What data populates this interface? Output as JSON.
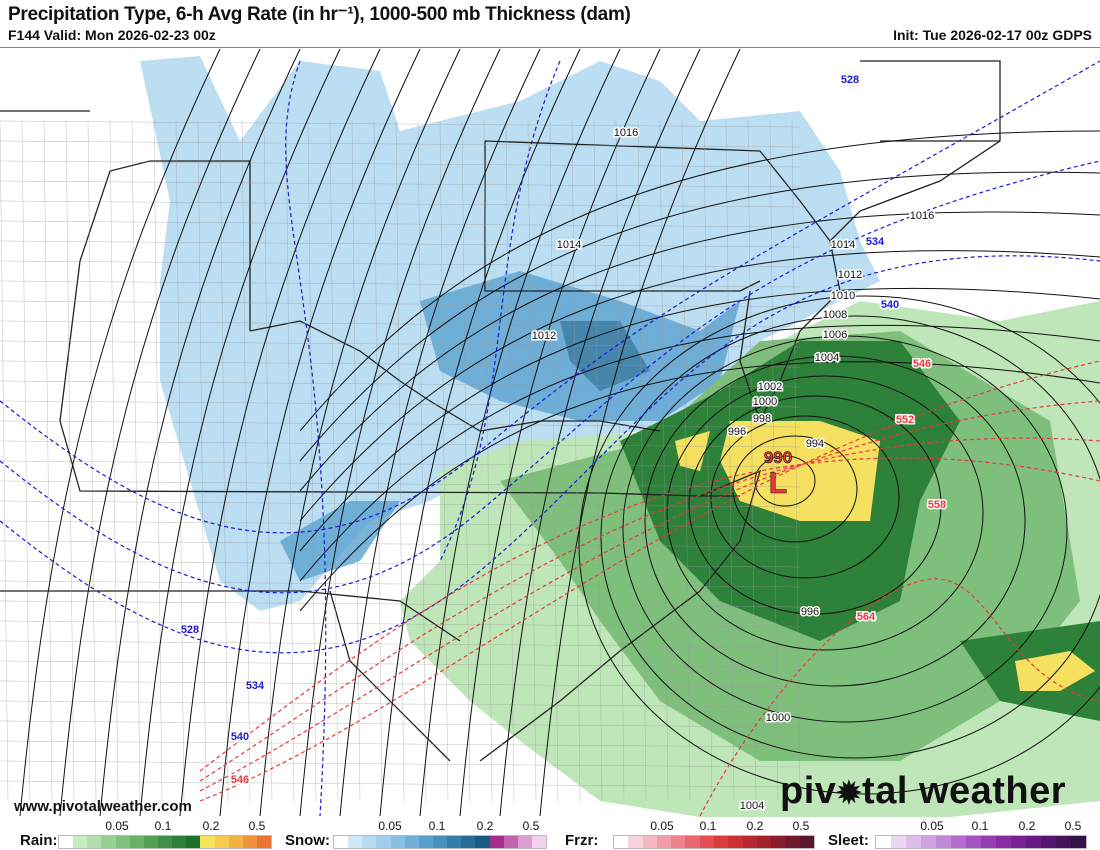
{
  "header": {
    "title": "Precipitation Type, 6-h Avg Rate (in hr⁻¹), 1000-500 mb Thickness (dam)",
    "valid": "F144 Valid: Mon 2026-02-23 00z",
    "init": "Init: Tue 2026-02-17 00z GDPS"
  },
  "map": {
    "low_pressure": {
      "symbol": "L",
      "value": "990"
    },
    "isobar_labels": [
      "1016",
      "1016",
      "1014",
      "1014",
      "1012",
      "1012",
      "1010",
      "1008",
      "1006",
      "1004",
      "1002",
      "1000",
      "998",
      "996",
      "994",
      "996",
      "1000",
      "1004"
    ],
    "thickness_labels_blue": [
      "528",
      "534",
      "540",
      "528",
      "534",
      "540"
    ],
    "thickness_labels_red": [
      "546",
      "546",
      "552",
      "558",
      "564"
    ],
    "colors": {
      "snow": "#a9d3ee",
      "rain": "#3f9a4a",
      "mix": "#f5d35a",
      "isobar": "#111111",
      "thickness_cold": "#1a1adc",
      "thickness_warm": "#e8383a"
    }
  },
  "watermark": "www.pivotalweather.com",
  "brand": {
    "pre": "piv",
    "post": "tal weather"
  },
  "legend": [
    {
      "label": "Rain:",
      "ticks": [
        "0.05",
        "0.1",
        "0.2",
        "0.5"
      ],
      "colors": [
        "#ffffff",
        "#c8ebc3",
        "#b0dfab",
        "#98d093",
        "#80c07d",
        "#69b068",
        "#54a056",
        "#3f9046",
        "#2c8038",
        "#1d702c",
        "#f6e35c",
        "#f7cc4c",
        "#f5b043",
        "#f1923a",
        "#ec7431"
      ]
    },
    {
      "label": "Snow:",
      "ticks": [
        "0.05",
        "0.1",
        "0.2",
        "0.5"
      ],
      "colors": [
        "#ffffff",
        "#cfe8f7",
        "#b7dcf2",
        "#9fcfec",
        "#86c0e3",
        "#6eb0d8",
        "#58a0cc",
        "#4590bd",
        "#347eab",
        "#266c97",
        "#1b5a82",
        "#a32f8c",
        "#c062ae",
        "#dc9ed0",
        "#f0d3ea"
      ]
    },
    {
      "label": "Frzr:",
      "ticks": [
        "0.05",
        "0.1",
        "0.2",
        "0.5"
      ],
      "colors": [
        "#ffffff",
        "#f7d4dc",
        "#f4b8c3",
        "#f19ca8",
        "#ee818c",
        "#e96770",
        "#e44f55",
        "#dc3c3f",
        "#cc3034",
        "#b8282f",
        "#a2222c",
        "#8a1d2b",
        "#72192b",
        "#5b1629"
      ]
    },
    {
      "label": "Sleet:",
      "ticks": [
        "0.05",
        "0.1",
        "0.2",
        "0.5"
      ],
      "colors": [
        "#ffffff",
        "#ecd7f2",
        "#dfbdea",
        "#d1a2e1",
        "#c387d7",
        "#b46ccc",
        "#a553c0",
        "#963db3",
        "#872ca4",
        "#772194",
        "#661a82",
        "#55166f",
        "#45135c",
        "#36104a"
      ]
    }
  ]
}
